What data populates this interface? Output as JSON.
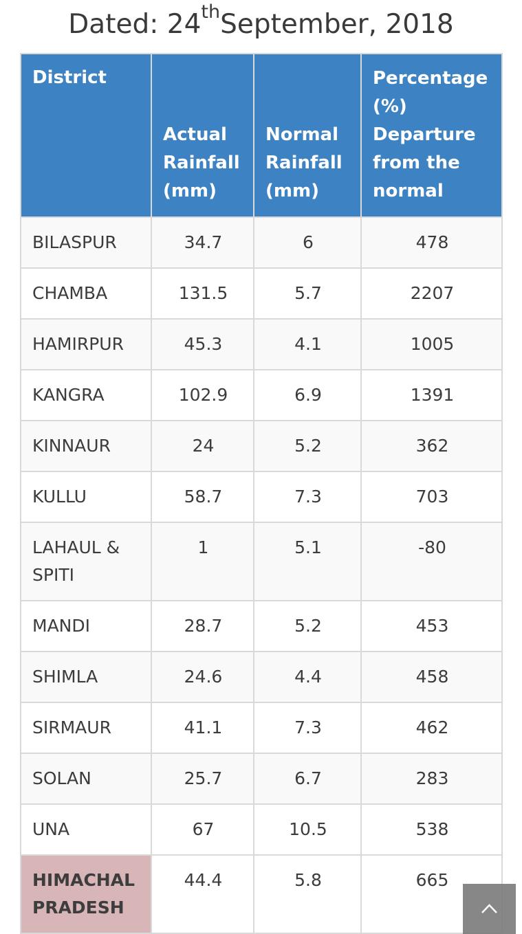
{
  "title": {
    "prefix": "Dated: 24",
    "superscript": "th",
    "suffix": "September, 2018"
  },
  "table": {
    "headers": {
      "district": "District",
      "actual": "Actual Rainfall (mm)",
      "normal": "Normal Rainfall (mm)",
      "departure": "Percentage (%) Departure from the normal"
    },
    "rows": [
      {
        "district": "BILASPUR",
        "actual": "34.7",
        "normal": "6",
        "departure": "478"
      },
      {
        "district": "CHAMBA",
        "actual": "131.5",
        "normal": "5.7",
        "departure": "2207"
      },
      {
        "district": "HAMIRPUR",
        "actual": "45.3",
        "normal": "4.1",
        "departure": "1005"
      },
      {
        "district": "KANGRA",
        "actual": "102.9",
        "normal": "6.9",
        "departure": "1391"
      },
      {
        "district": "KINNAUR",
        "actual": "24",
        "normal": "5.2",
        "departure": "362"
      },
      {
        "district": "KULLU",
        "actual": "58.7",
        "normal": "7.3",
        "departure": "703"
      },
      {
        "district": "LAHAUL & SPITI",
        "actual": "1",
        "normal": "5.1",
        "departure": "-80"
      },
      {
        "district": "MANDI",
        "actual": "28.7",
        "normal": "5.2",
        "departure": "453"
      },
      {
        "district": "SHIMLA",
        "actual": "24.6",
        "normal": "4.4",
        "departure": "458"
      },
      {
        "district": "SIRMAUR",
        "actual": "41.1",
        "normal": "7.3",
        "departure": "462"
      },
      {
        "district": "SOLAN",
        "actual": "25.7",
        "normal": "6.7",
        "departure": "283"
      },
      {
        "district": "UNA",
        "actual": "67",
        "normal": "10.5",
        "departure": "538"
      }
    ],
    "total": {
      "district": "HIMACHAL PRADESH",
      "actual": "44.4",
      "normal": "5.8",
      "departure": "665"
    }
  },
  "scroll_top_icon": "chevron-up-icon",
  "colors": {
    "header_bg": "#3d83c4",
    "total_highlight": "#d8b5b6",
    "scroll_button": "#7d7d7d"
  }
}
